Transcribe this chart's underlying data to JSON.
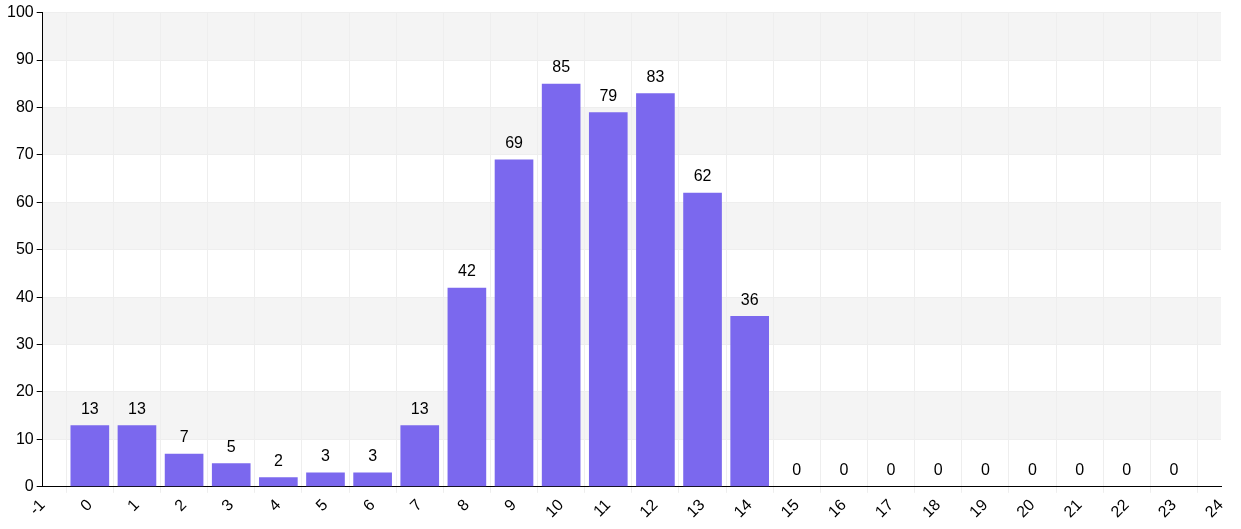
{
  "chart_data": {
    "type": "bar",
    "x": [
      0,
      1,
      2,
      3,
      4,
      5,
      6,
      7,
      8,
      9,
      10,
      11,
      12,
      13,
      14,
      15,
      16,
      17,
      18,
      19,
      20,
      21,
      22,
      23
    ],
    "values": [
      13,
      13,
      7,
      5,
      2,
      3,
      3,
      13,
      42,
      69,
      85,
      79,
      83,
      62,
      36,
      0,
      0,
      0,
      0,
      0,
      0,
      0,
      0,
      0
    ],
    "color": "#7b68ee",
    "xlim": [
      -1,
      24
    ],
    "xticks": [
      -1,
      0,
      1,
      2,
      3,
      4,
      5,
      6,
      7,
      8,
      9,
      10,
      11,
      12,
      13,
      14,
      15,
      16,
      17,
      18,
      19,
      20,
      21,
      22,
      23,
      24
    ],
    "ylim": [
      0,
      100
    ],
    "yticks": [
      0,
      10,
      20,
      30,
      40,
      50,
      60,
      70,
      80,
      90,
      100
    ],
    "bands": [
      {
        "axis": "y",
        "from": 10,
        "to": 20,
        "color": "#f4f4f4"
      },
      {
        "axis": "y",
        "from": 30,
        "to": 40,
        "color": "#f4f4f4"
      },
      {
        "axis": "y",
        "from": 50,
        "to": 60,
        "color": "#f4f4f4"
      },
      {
        "axis": "y",
        "from": 70,
        "to": 80,
        "color": "#f4f4f4"
      },
      {
        "axis": "y",
        "from": 90,
        "to": 100,
        "color": "#f4f4f4"
      }
    ],
    "grid": true,
    "data_labels": true,
    "legend": false
  }
}
